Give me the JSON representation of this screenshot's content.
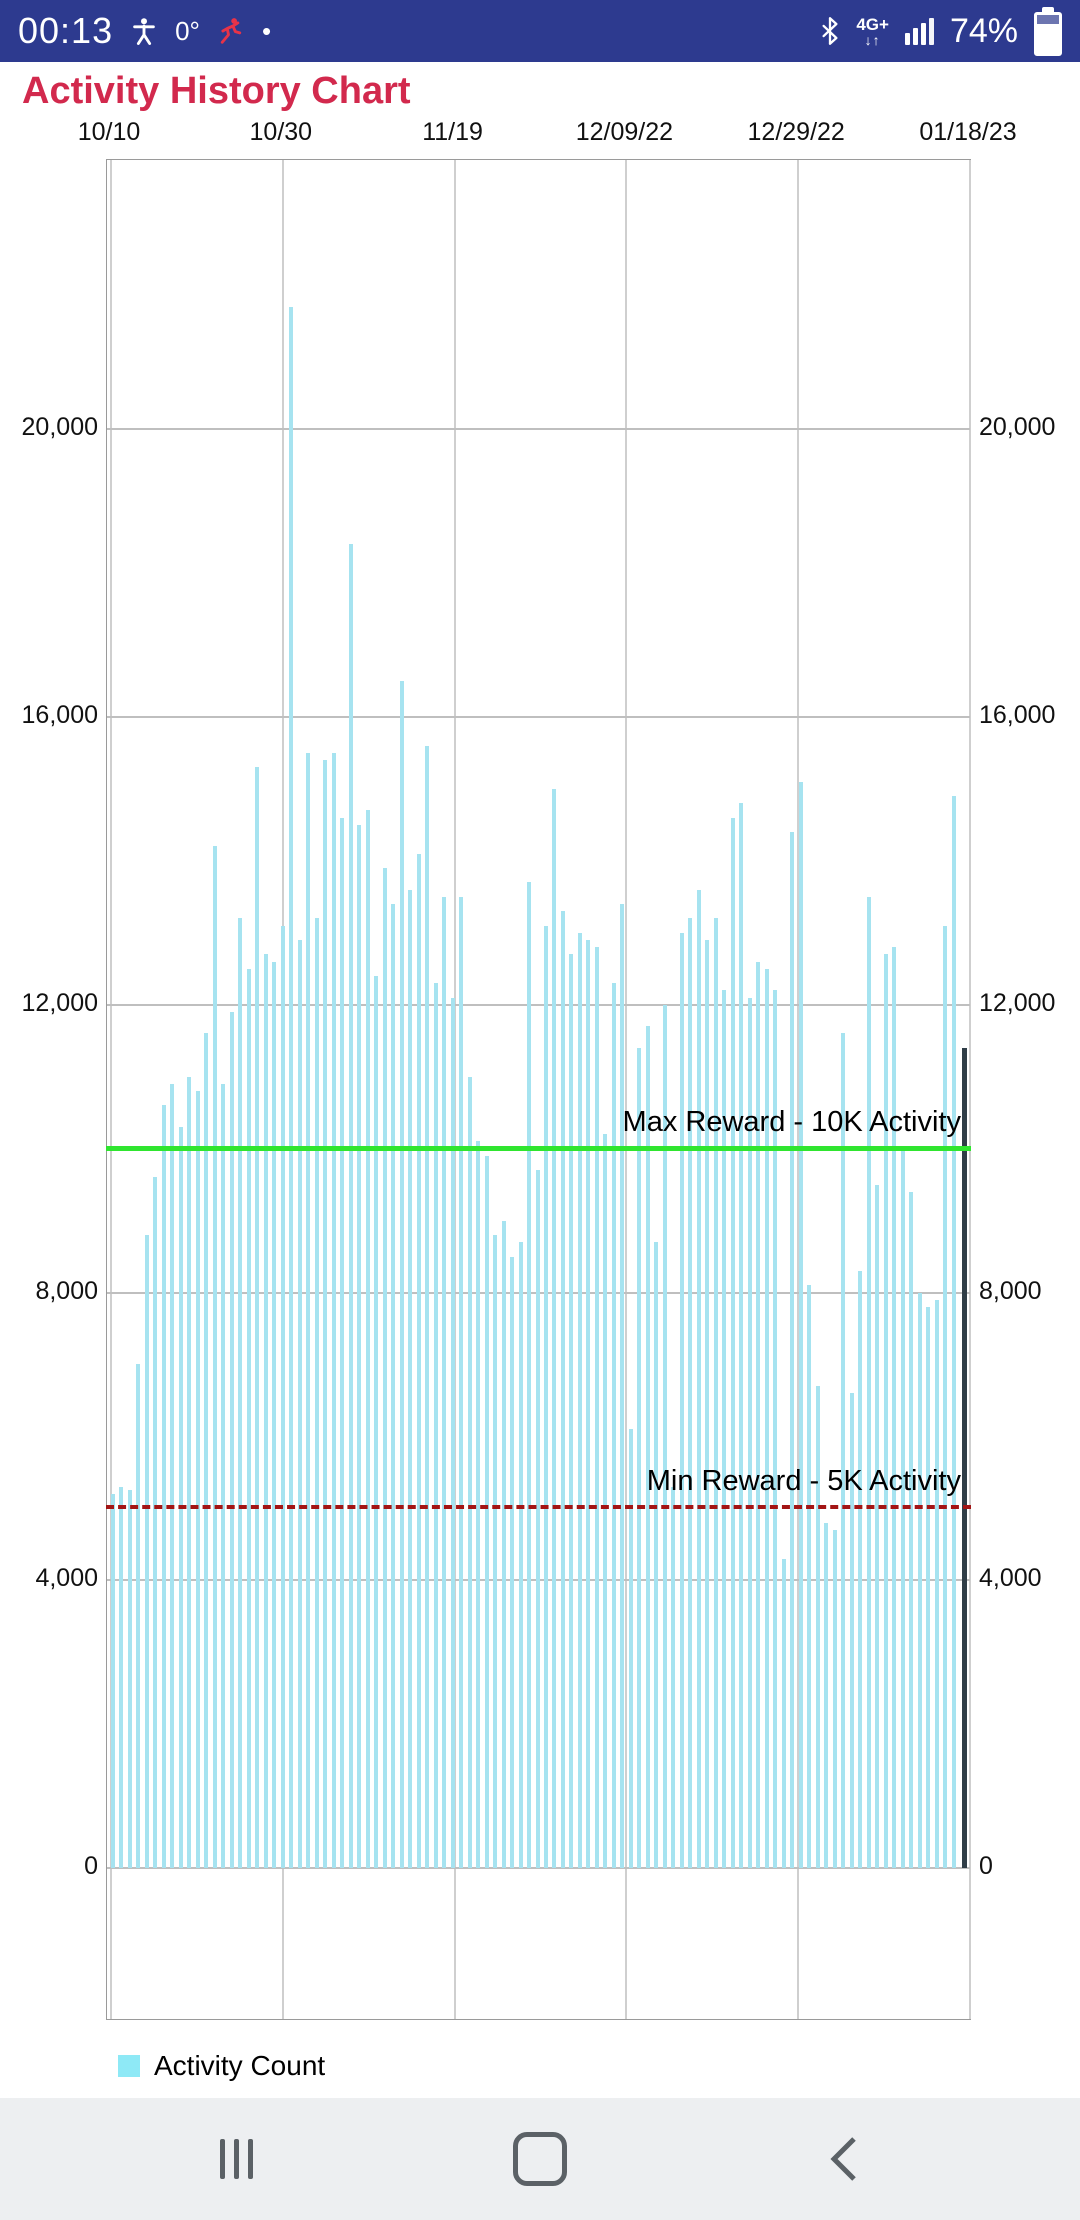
{
  "status_bar": {
    "time": "00:13",
    "temp": "0°",
    "dot": "•",
    "network_label": "4G+",
    "battery_percent": "74%",
    "icons": [
      "accessibility-icon",
      "workout-runner-icon",
      "bluetooth-icon",
      "mobile-data-arrows-icon",
      "signal-strength-icon",
      "battery-icon"
    ]
  },
  "header": {
    "title": "Activity History Chart",
    "title_color": "#d2294d"
  },
  "chart_data": {
    "type": "bar",
    "title": "Activity History Chart",
    "watermark": "Activity History Chart",
    "x_axis_position": "top",
    "y_axis_labels": "both",
    "grid": true,
    "legend_position": "bottom-left",
    "x_tick_labels": [
      "10/10",
      "10/30",
      "11/19",
      "12/09/22",
      "12/29/22",
      "01/18/23"
    ],
    "y_ticks": [
      {
        "value": 0,
        "label": "0"
      },
      {
        "value": 4000,
        "label": "4,000"
      },
      {
        "value": 8000,
        "label": "8,000"
      },
      {
        "value": 12000,
        "label": "12,000"
      },
      {
        "value": 16000,
        "label": "16,000"
      },
      {
        "value": 20000,
        "label": "20,000"
      }
    ],
    "ylim": [
      -2125,
      23740
    ],
    "bar_color": "#a6e3f0",
    "series": [
      {
        "name": "Activity Count",
        "values": [
          5200,
          5300,
          5250,
          7000,
          8800,
          9600,
          10600,
          10900,
          10300,
          11000,
          10800,
          11600,
          14200,
          10900,
          11900,
          13200,
          12500,
          15300,
          12700,
          12600,
          13100,
          21700,
          12900,
          15500,
          13200,
          15400,
          15500,
          14600,
          18400,
          14500,
          14700,
          12400,
          13900,
          13400,
          16500,
          13600,
          14100,
          15600,
          12300,
          13500,
          12100,
          13500,
          11000,
          10100,
          9900,
          8800,
          9000,
          8500,
          8700,
          13700,
          9700,
          13100,
          15000,
          13300,
          12700,
          13000,
          12900,
          12800,
          10200,
          12300,
          13400,
          6100,
          11400,
          11700,
          8700,
          12000,
          5300,
          13000,
          13200,
          13600,
          12900,
          13200,
          12200,
          14600,
          14800,
          12100,
          12600,
          12500,
          12200,
          4300,
          14400,
          15100,
          8100,
          6700,
          4800,
          4700,
          11600,
          6600,
          8300,
          13500,
          9500,
          12700,
          12800,
          10000,
          9400,
          8000,
          7800,
          7900,
          13100,
          14900
        ]
      }
    ],
    "ref_lines": [
      {
        "value": 10000,
        "label": "Max Reward - 10K Activity",
        "color": "#2fe52f",
        "style": "solid"
      },
      {
        "value": 5000,
        "label": "Min Reward - 5K Activity",
        "color": "#a31515",
        "style": "dashed"
      }
    ],
    "cursor": {
      "value": 11400,
      "color": "#2f3d47"
    },
    "legend": {
      "label": "Activity Count",
      "swatch_color": "#8ee9f6"
    }
  },
  "nav_bar": {
    "buttons": [
      "recents",
      "home",
      "back"
    ]
  }
}
